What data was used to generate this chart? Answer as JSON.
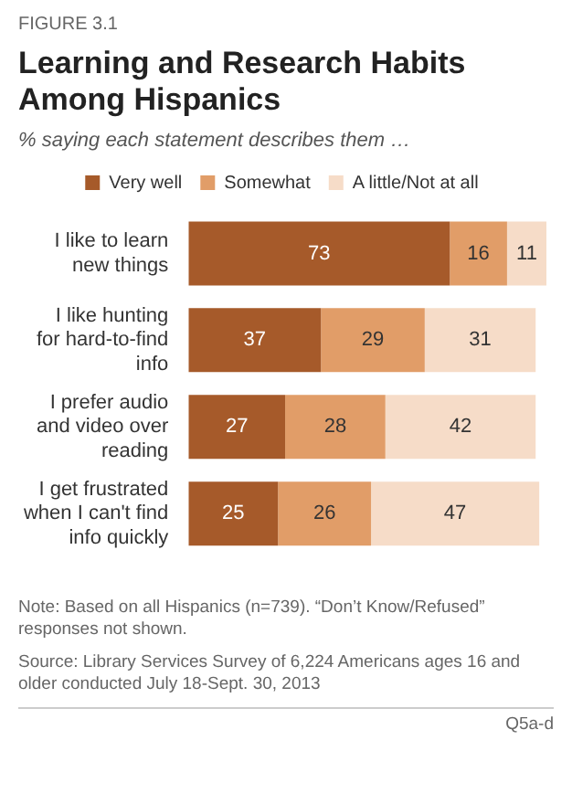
{
  "chart_data": {
    "type": "bar",
    "orientation": "horizontal",
    "stacked": true,
    "title": "Learning and Research Habits Among Hispanics",
    "subtitle": "% saying each statement describes them …",
    "categories": [
      "I like to learn new things",
      "I like hunting for hard-to-find info",
      "I prefer audio and video over reading",
      "I get frustrated when I can't find info quickly"
    ],
    "series": [
      {
        "name": "Very well",
        "color": "#a65a2a",
        "values": [
          73,
          37,
          27,
          25
        ]
      },
      {
        "name": "Somewhat",
        "color": "#e19d68",
        "values": [
          16,
          29,
          28,
          26
        ]
      },
      {
        "name": "A little/Not at all",
        "color": "#f6dcc8",
        "values": [
          11,
          31,
          42,
          47
        ]
      }
    ],
    "xlim": [
      0,
      100
    ],
    "tick_labels": "y",
    "data_labels": true,
    "legend": "top",
    "annotations": [
      "FIGURE 3.1",
      "Note: Based on all Hispanics (n=739). “Don’t Know/Refused” responses not shown.",
      "Source: Library Services Survey of 6,224 Americans ages 16 and older conducted July 18-Sept. 30, 2013",
      "Q5a-d"
    ]
  }
}
